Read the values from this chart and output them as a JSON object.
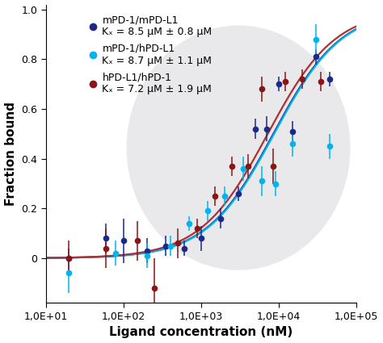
{
  "title": "",
  "xlabel": "Ligand concentration (nM)",
  "ylabel": "Fraction bound",
  "ylim": [
    -0.18,
    1.02
  ],
  "series": [
    {
      "label1": "mPD-1/mPD-L1",
      "label2": "Kₓ = 8.5 μM ± 0.8 μM",
      "color": "#1b2a8a",
      "Kd_nM": 8500,
      "x": [
        20,
        60,
        100,
        200,
        350,
        600,
        1000,
        1800,
        3000,
        5000,
        7000,
        10000,
        15000,
        30000,
        45000
      ],
      "y": [
        0.0,
        0.08,
        0.07,
        0.03,
        0.05,
        0.04,
        0.08,
        0.16,
        0.26,
        0.52,
        0.52,
        0.7,
        0.51,
        0.81,
        0.72
      ],
      "yerr": [
        0.04,
        0.06,
        0.09,
        0.05,
        0.04,
        0.03,
        0.05,
        0.04,
        0.03,
        0.04,
        0.05,
        0.03,
        0.04,
        0.03,
        0.03
      ],
      "curve_color": "#1b2a8a"
    },
    {
      "label1": "mPD-1/hPD-L1",
      "label2": "Kₓ = 8.7 μM ± 1.1 μM",
      "color": "#00b4f0",
      "Kd_nM": 8700,
      "x": [
        20,
        80,
        200,
        400,
        700,
        1200,
        2000,
        3500,
        6000,
        9000,
        15000,
        30000,
        45000
      ],
      "y": [
        -0.06,
        0.02,
        0.01,
        0.05,
        0.14,
        0.19,
        0.25,
        0.36,
        0.31,
        0.3,
        0.46,
        0.88,
        0.45
      ],
      "yerr": [
        0.08,
        0.05,
        0.05,
        0.04,
        0.03,
        0.04,
        0.04,
        0.05,
        0.06,
        0.05,
        0.05,
        0.06,
        0.05
      ],
      "curve_color": "#00b4f0"
    },
    {
      "label1": "hPD-L1/hPD-1",
      "label2": "Kₓ = 7.2 μM ± 1.9 μM",
      "color": "#8b1515",
      "Kd_nM": 7200,
      "x": [
        20,
        60,
        150,
        250,
        500,
        900,
        1500,
        2500,
        4000,
        6000,
        8500,
        12000,
        20000,
        35000
      ],
      "y": [
        0.0,
        0.04,
        0.07,
        -0.12,
        0.06,
        0.12,
        0.25,
        0.37,
        0.37,
        0.68,
        0.37,
        0.71,
        0.72,
        0.71
      ],
      "yerr": [
        0.07,
        0.08,
        0.08,
        0.12,
        0.06,
        0.04,
        0.04,
        0.04,
        0.05,
        0.05,
        0.07,
        0.04,
        0.04,
        0.04
      ],
      "curve_color": "#b03030"
    }
  ],
  "background_color": "#ffffff",
  "ellipse_color": "#d8d8dc",
  "tick_label_size": 9,
  "axis_label_size": 11,
  "legend_fontsize": 9
}
